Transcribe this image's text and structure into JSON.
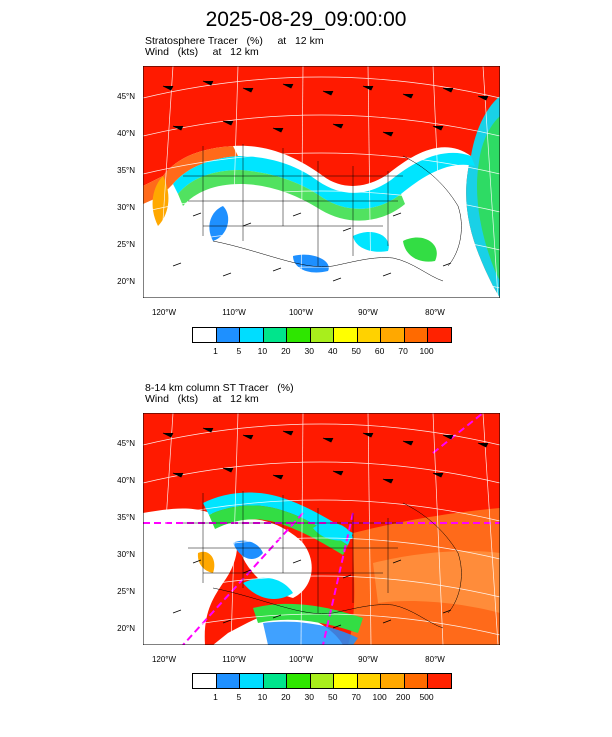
{
  "page": {
    "title": "2025-08-29_09:00:00"
  },
  "panels": [
    {
      "title_line1": "Stratosphere Tracer   (%)     at   12 km",
      "title_line2": "Wind   (kts)     at   12 km",
      "lat_labels": [
        "45°N",
        "40°N",
        "35°N",
        "30°N",
        "25°N",
        "20°N"
      ],
      "lon_labels": [
        "120°W",
        "110°W",
        "100°W",
        "90°W",
        "80°W"
      ],
      "colorbar": {
        "colors": [
          "#ffffff",
          "#1e90ff",
          "#00ddff",
          "#00e58c",
          "#2ee600",
          "#a8ee1c",
          "#ffff00",
          "#ffd200",
          "#ffa800",
          "#ff6a00",
          "#ff2200"
        ],
        "labels": [
          "1",
          "5",
          "10",
          "20",
          "30",
          "40",
          "50",
          "60",
          "70",
          "100"
        ]
      },
      "colors": {
        "high": "#ff1a00",
        "mid": "#ff6a1a",
        "cyan": "#00e5ff",
        "green": "#33dd44",
        "blue": "#1e90ff",
        "land": "#ffffff"
      }
    },
    {
      "title_line1": "8-14 km column ST Tracer   (%)",
      "title_line2": "Wind   (kts)     at   12 km",
      "lat_labels": [
        "45°N",
        "40°N",
        "35°N",
        "30°N",
        "25°N",
        "20°N"
      ],
      "lon_labels": [
        "120°W",
        "110°W",
        "100°W",
        "90°W",
        "80°W"
      ],
      "colorbar": {
        "colors": [
          "#ffffff",
          "#1e90ff",
          "#00ddff",
          "#00e58c",
          "#2ee600",
          "#a8ee1c",
          "#ffff00",
          "#ffd200",
          "#ffa800",
          "#ff6a00",
          "#ff2200"
        ],
        "labels": [
          "1",
          "5",
          "10",
          "20",
          "30",
          "50",
          "70",
          "100",
          "200",
          "500"
        ]
      },
      "colors": {
        "high": "#ff1a00",
        "mid": "#ff6a1a",
        "orange": "#ff8c3a",
        "cyan": "#00e5ff",
        "green": "#33dd44",
        "blue": "#1e90ff",
        "magenta": "#ff00ff",
        "land": "#ffffff"
      }
    }
  ]
}
